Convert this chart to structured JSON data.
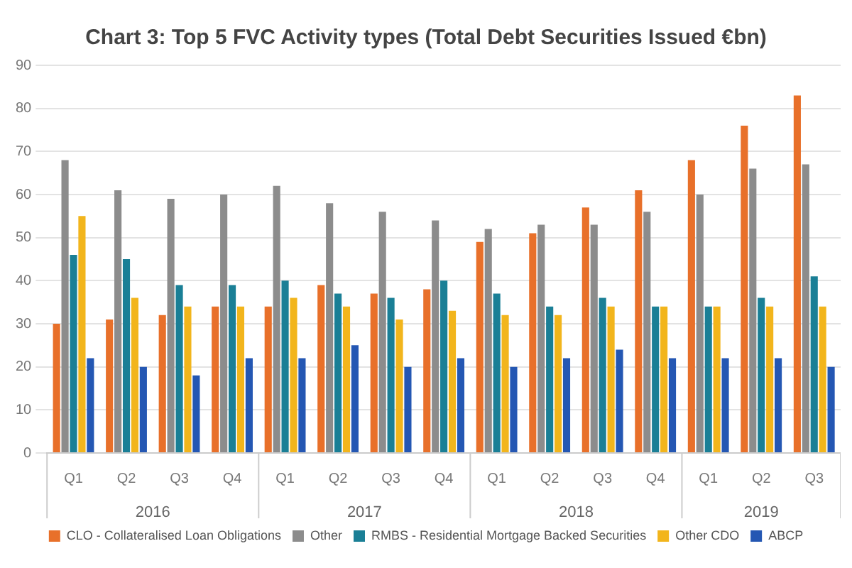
{
  "chart_data": {
    "type": "bar",
    "title": "Chart 3: Top 5 FVC Activity types (Total Debt Securities Issued €bn)",
    "categories": [
      "Q1",
      "Q2",
      "Q3",
      "Q4",
      "Q1",
      "Q2",
      "Q3",
      "Q4",
      "Q1",
      "Q2",
      "Q3",
      "Q4",
      "Q1",
      "Q2",
      "Q3"
    ],
    "annotations": [
      "2016",
      "2017",
      "2018",
      "2019"
    ],
    "series": [
      {
        "name": "CLO - Collateralised Loan Obligations",
        "color": "#e8702a",
        "values": [
          30,
          31,
          32,
          34,
          34,
          39,
          37,
          38,
          49,
          51,
          57,
          61,
          68,
          76,
          83
        ]
      },
      {
        "name": "Other",
        "color": "#8c8c8c",
        "values": [
          68,
          61,
          59,
          60,
          62,
          58,
          56,
          54,
          52,
          53,
          53,
          56,
          60,
          66,
          67
        ]
      },
      {
        "name": "RMBS - Residential Mortgage Backed Securities",
        "color": "#1a7f96",
        "values": [
          46,
          45,
          39,
          39,
          40,
          37,
          36,
          40,
          37,
          34,
          36,
          34,
          34,
          36,
          41
        ]
      },
      {
        "name": "Other CDO",
        "color": "#f2b51c",
        "values": [
          55,
          36,
          34,
          34,
          36,
          34,
          31,
          33,
          32,
          32,
          34,
          34,
          34,
          34,
          34
        ]
      },
      {
        "name": "ABCP",
        "color": "#2457b3",
        "values": [
          22,
          20,
          18,
          22,
          22,
          25,
          20,
          22,
          20,
          22,
          24,
          22,
          22,
          22,
          20
        ]
      }
    ],
    "ylim": [
      0,
      90
    ],
    "yticks": [
      0,
      10,
      20,
      30,
      40,
      50,
      60,
      70,
      80,
      90
    ],
    "grid": "y",
    "legend": "bottom"
  }
}
